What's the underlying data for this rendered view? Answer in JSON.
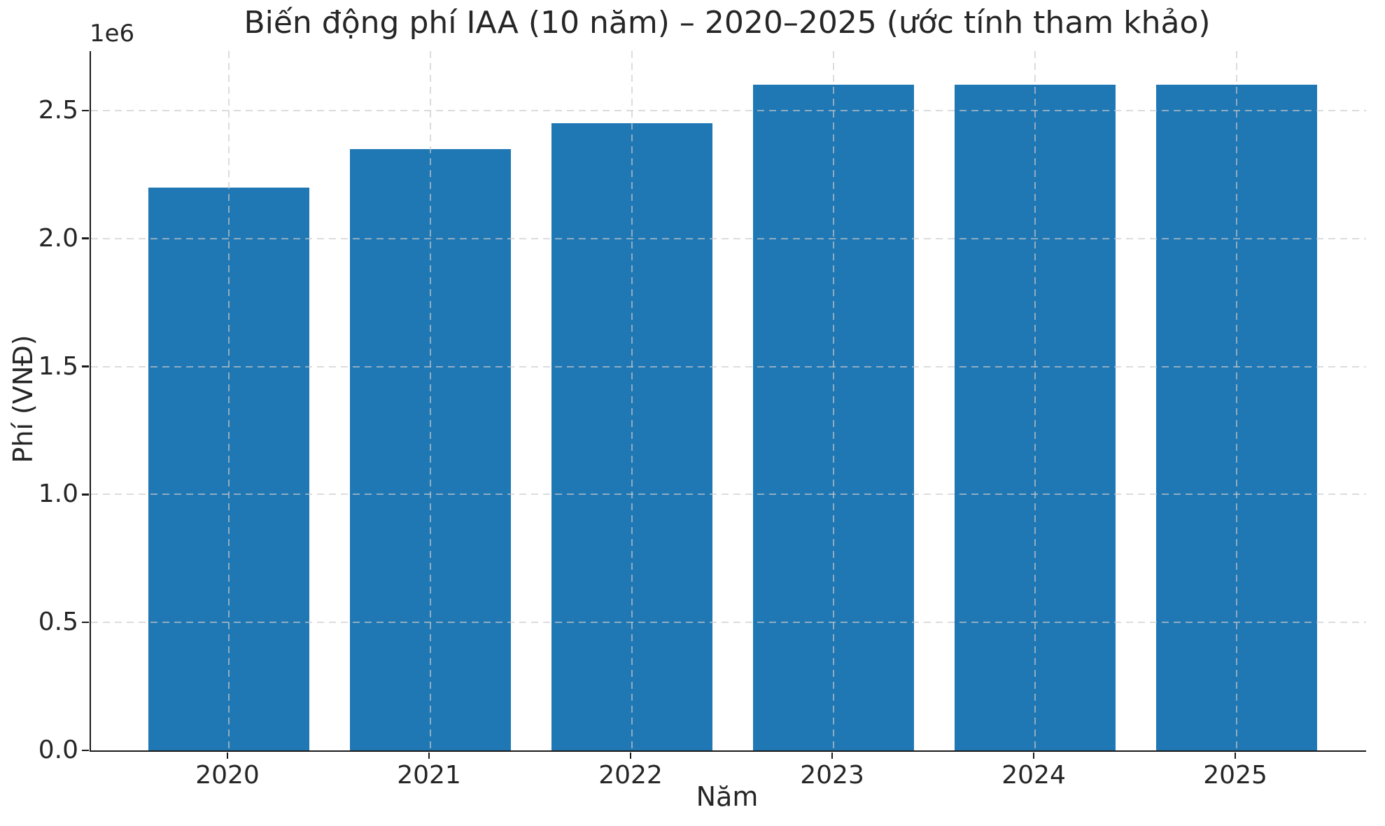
{
  "figure": {
    "background": "#ffffff"
  },
  "chart_data": {
    "type": "bar",
    "title": "Biến động phí IAA (10 năm) – 2020–2025 (ước tính tham khảo)",
    "xlabel": "Năm",
    "ylabel": "Phí (VNĐ)",
    "offset_text": "1e6",
    "categories": [
      "2020",
      "2021",
      "2022",
      "2023",
      "2024",
      "2025"
    ],
    "values": [
      2200000,
      2350000,
      2450000,
      2600000,
      2600000,
      2600000
    ],
    "ytick_values": [
      0,
      500000,
      1000000,
      1500000,
      2000000,
      2500000
    ],
    "ytick_labels": [
      "0.0",
      "0.5",
      "1.0",
      "1.5",
      "2.0",
      "2.5"
    ],
    "ylim": [
      0,
      2732000
    ],
    "xlim": [
      -0.684,
      5.642
    ],
    "bar_width": 0.8,
    "grid": true,
    "grid_linestyle": "dashed",
    "grid_above_bars": true,
    "legend": "none",
    "bar_color": "#1f77b4",
    "grid_color": "#cacaca",
    "spine_color": "#1a1a1a",
    "text_color": "#262626"
  }
}
